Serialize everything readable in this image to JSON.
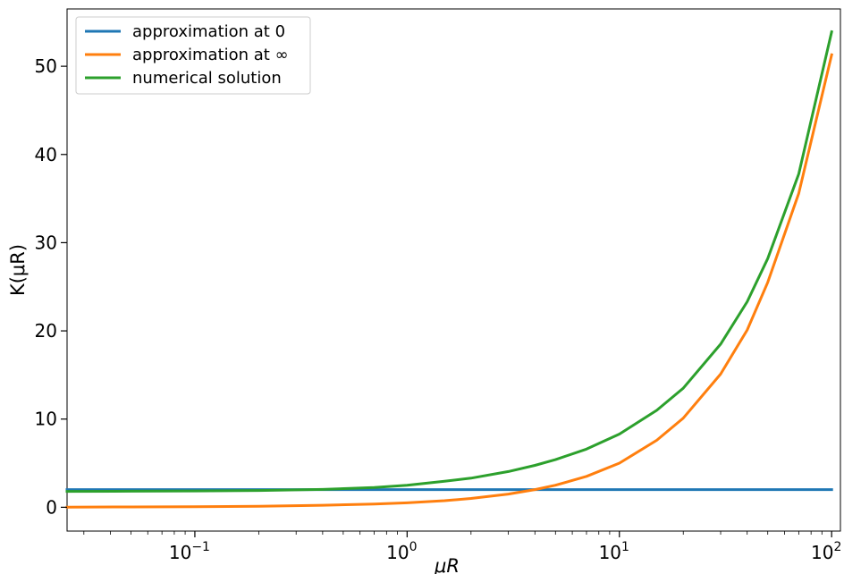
{
  "chart_data": {
    "type": "line",
    "xscale": "log",
    "xlim": [
      0.025,
      110
    ],
    "ylim": [
      -2.7,
      56.5
    ],
    "xlabel": "μR",
    "ylabel": "K(μR)",
    "grid": false,
    "legend_position": "top-left",
    "x_ticks": [
      {
        "value": 0.1,
        "base": "10",
        "exp": "−1"
      },
      {
        "value": 1,
        "base": "10",
        "exp": "0"
      },
      {
        "value": 10,
        "base": "10",
        "exp": "1"
      },
      {
        "value": 100,
        "base": "10",
        "exp": "2"
      }
    ],
    "y_ticks": [
      {
        "value": 0,
        "label": "0"
      },
      {
        "value": 10,
        "label": "10"
      },
      {
        "value": 20,
        "label": "20"
      },
      {
        "value": 30,
        "label": "30"
      },
      {
        "value": 40,
        "label": "40"
      },
      {
        "value": 50,
        "label": "50"
      }
    ],
    "series": [
      {
        "name": "approximation at 0",
        "color": "#1f77b4",
        "x": [
          0.025,
          100
        ],
        "y": [
          2.0,
          2.0
        ]
      },
      {
        "name": "approximation at ∞",
        "color": "#ff7f0e",
        "x": [
          0.025,
          0.05,
          0.1,
          0.2,
          0.4,
          0.7,
          1.0,
          1.5,
          2,
          3,
          4,
          5,
          7,
          10,
          15,
          20,
          30,
          40,
          50,
          70,
          100
        ],
        "y": [
          0.02,
          0.04,
          0.07,
          0.12,
          0.23,
          0.36,
          0.5,
          0.75,
          1.0,
          1.5,
          2.0,
          2.5,
          3.5,
          5.0,
          7.6,
          10.1,
          15.1,
          20.1,
          25.5,
          35.6,
          51.3
        ]
      },
      {
        "name": "numerical solution",
        "color": "#2ca02c",
        "x": [
          0.025,
          0.05,
          0.1,
          0.2,
          0.4,
          0.7,
          1.0,
          1.5,
          2,
          3,
          4,
          5,
          7,
          10,
          15,
          20,
          30,
          40,
          50,
          70,
          100
        ],
        "y": [
          1.8,
          1.82,
          1.85,
          1.9,
          2.02,
          2.25,
          2.5,
          2.95,
          3.3,
          4.05,
          4.75,
          5.4,
          6.6,
          8.3,
          11.0,
          13.5,
          18.5,
          23.3,
          28.2,
          37.8,
          53.9
        ]
      }
    ]
  }
}
